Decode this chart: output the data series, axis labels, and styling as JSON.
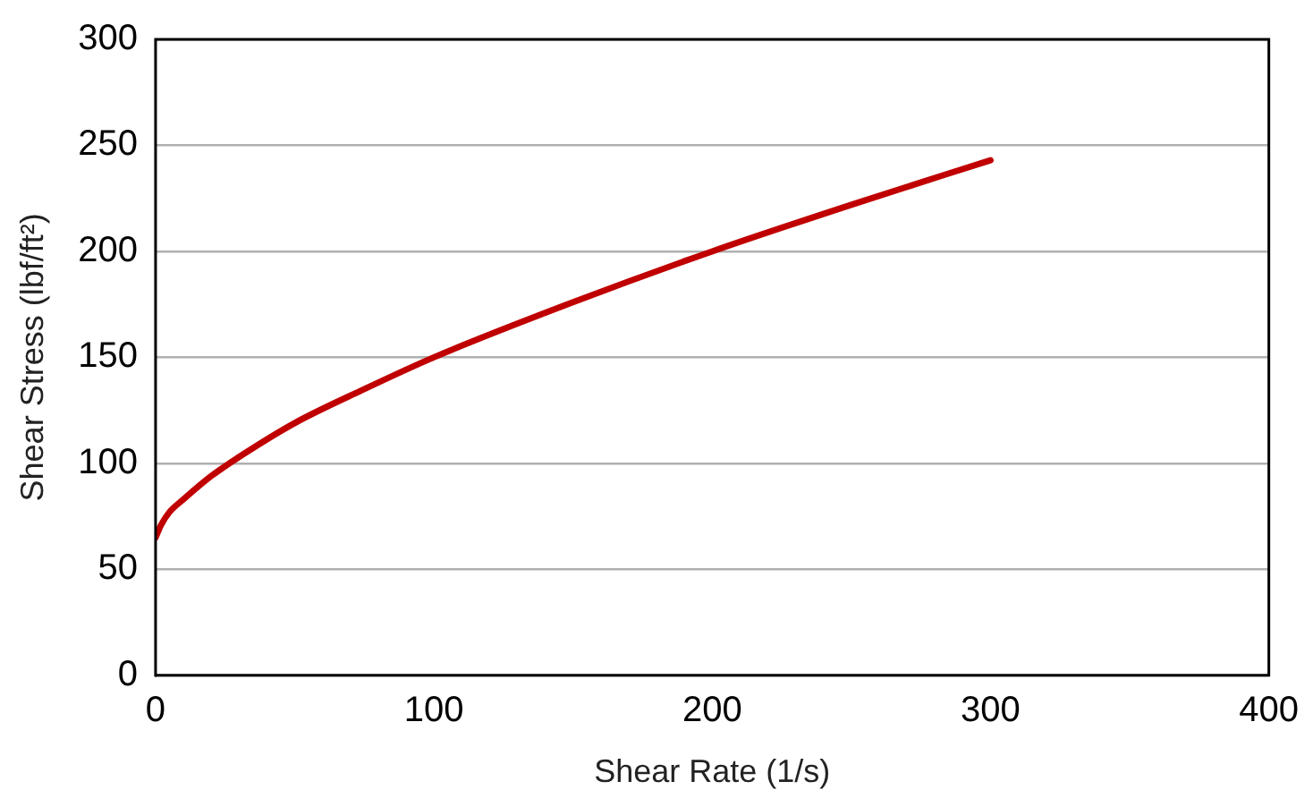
{
  "chart_data": {
    "type": "line",
    "xlabel": "Shear Rate (1/s)",
    "ylabel": "Shear Stress (lbf/ft²)",
    "series": [
      {
        "color": "#c00000",
        "x": [
          0,
          2,
          5,
          10,
          20,
          30,
          50,
          75,
          100,
          150,
          200,
          250,
          300
        ],
        "values": [
          65,
          71,
          77,
          83,
          94,
          103,
          119,
          135,
          150,
          176,
          200,
          222,
          243
        ]
      }
    ],
    "xlim": [
      0,
      400
    ],
    "xticks": [
      0,
      100,
      200,
      300,
      400
    ],
    "ylim": [
      0,
      300
    ],
    "yticks": [
      0,
      50,
      100,
      150,
      200,
      250,
      300
    ],
    "grid": "y",
    "legend": false,
    "marker": "none",
    "line_style": "solid"
  }
}
